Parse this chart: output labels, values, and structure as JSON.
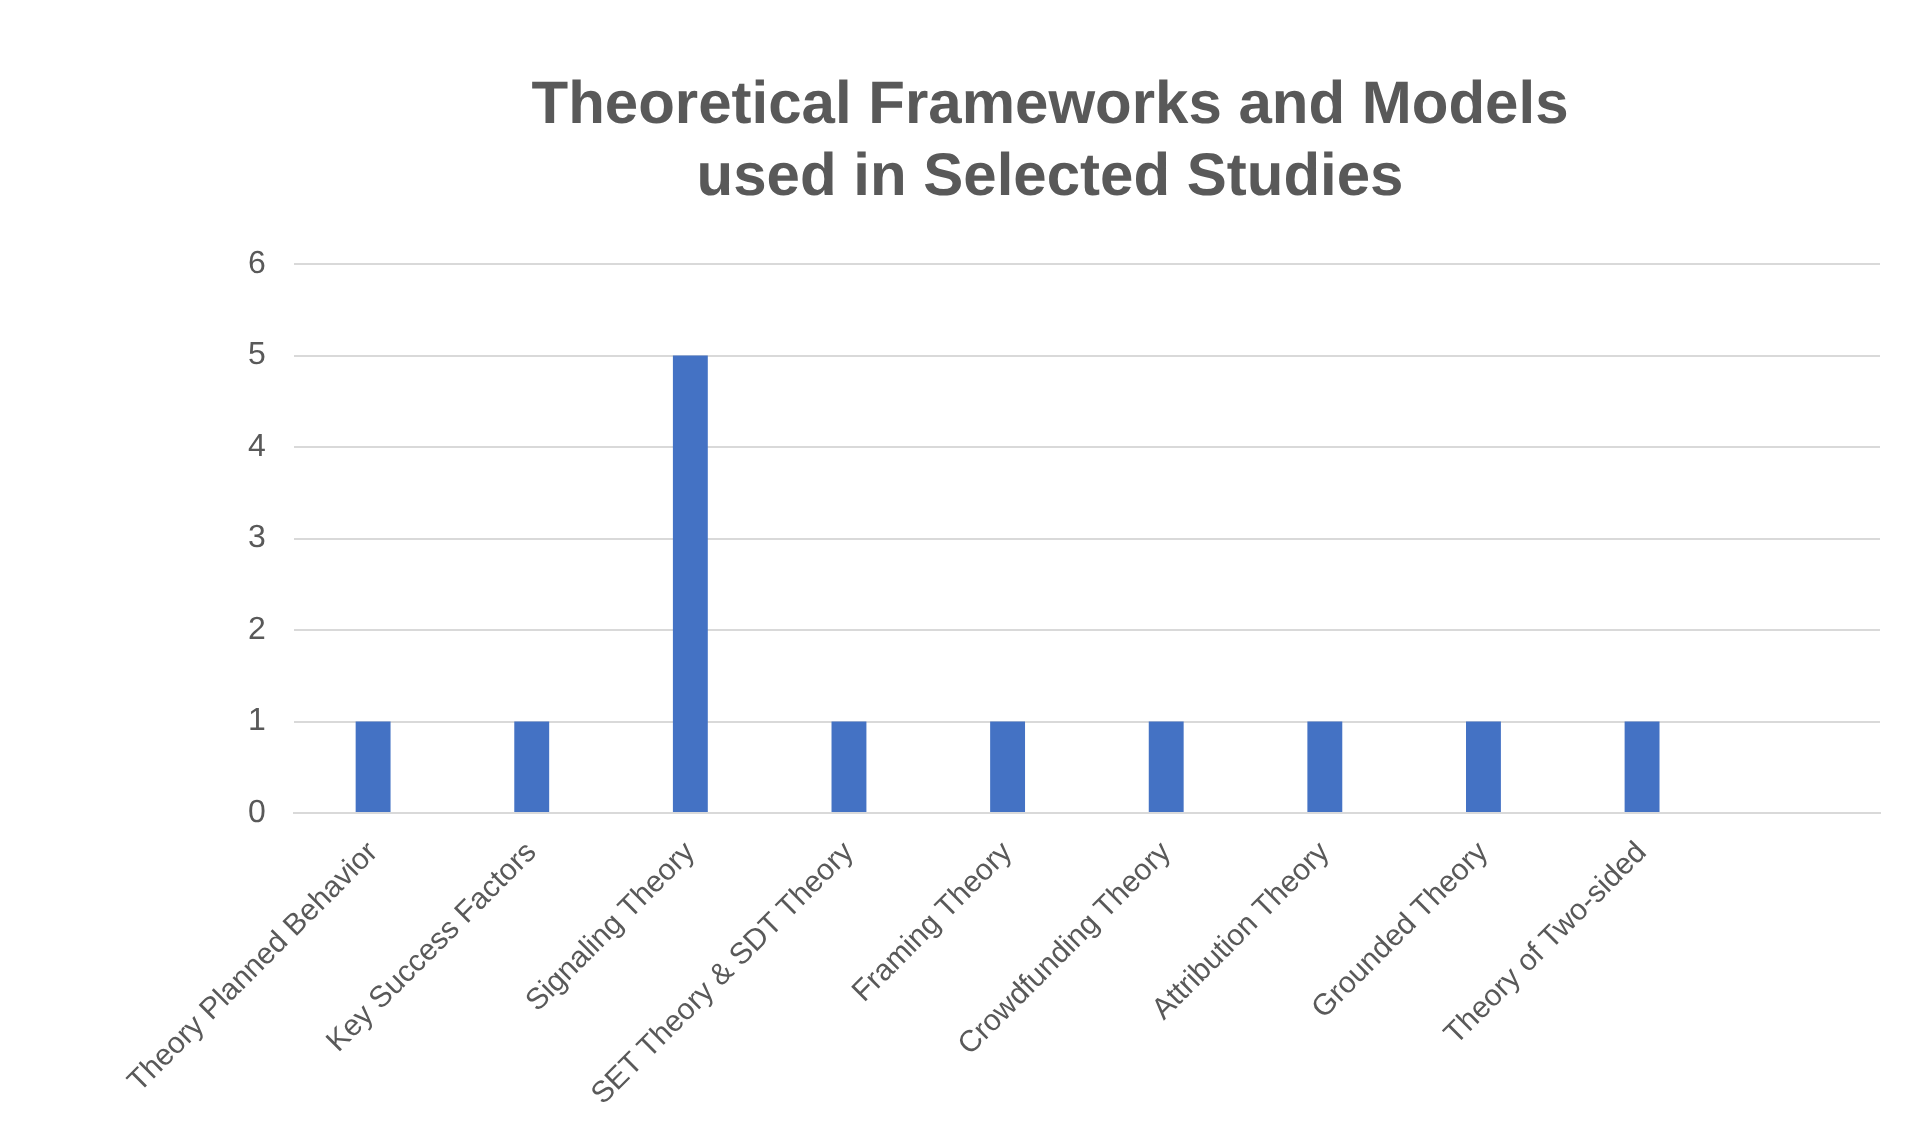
{
  "chart_data": {
    "type": "bar",
    "title": [
      "Theoretical Frameworks and Models",
      "used in Selected Studies"
    ],
    "categories": [
      "Theory Planned Behavior",
      "Key Success Factors",
      "Signaling Theory",
      "SET Theory & SDT Theory",
      "Framing Theory",
      "Crowdfunding Theory",
      "Attribution Theory",
      "Grounded Theory",
      "Theory of Two-sided",
      null
    ],
    "values": [
      1,
      1,
      5,
      1,
      1,
      1,
      1,
      1,
      1,
      null
    ],
    "color": "#4472c4",
    "ylim": [
      0,
      6
    ],
    "yticks": [
      0,
      1,
      2,
      3,
      4,
      5,
      6
    ],
    "grid": "y",
    "legend": false
  }
}
